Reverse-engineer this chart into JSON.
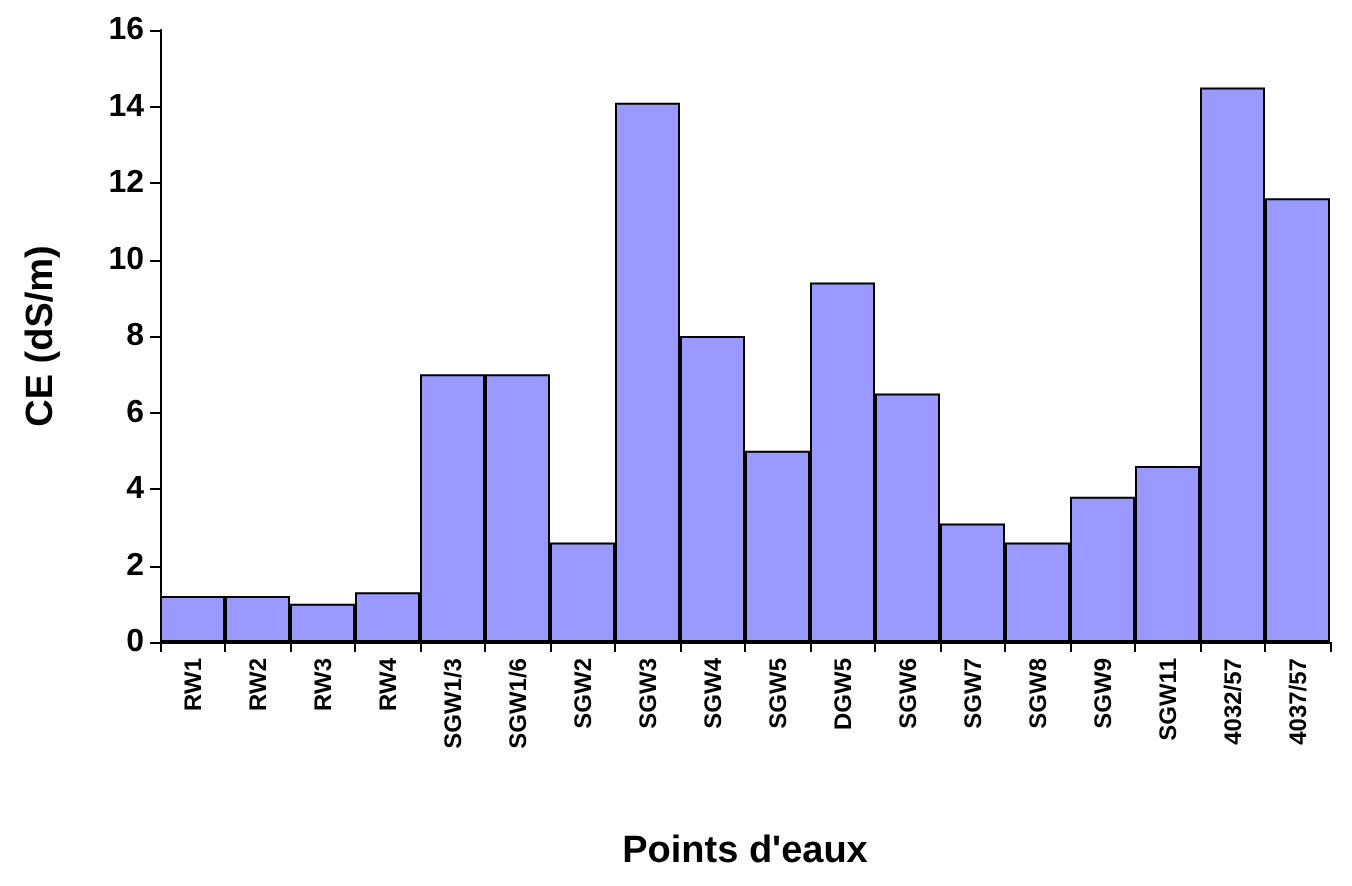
{
  "chart_data": {
    "type": "bar",
    "xlabel": "Points d'eaux",
    "ylabel": "CE (dS/m)",
    "categories": [
      "RW1",
      "RW2",
      "RW3",
      "RW4",
      "SGW1/3",
      "SGW1/6",
      "SGW2",
      "SGW3",
      "SGW4",
      "SGW5",
      "DGW5",
      "SGW6",
      "SGW7",
      "SGW8",
      "SGW9",
      "SGW11",
      "4032/57",
      "4037/57"
    ],
    "values": [
      1.2,
      1.2,
      1.0,
      1.3,
      7.0,
      7.0,
      2.6,
      14.1,
      8.0,
      5.0,
      9.4,
      6.5,
      3.1,
      2.6,
      3.8,
      4.6,
      14.5,
      11.6
    ],
    "color": "#9999ff",
    "ylim": [
      0,
      16
    ],
    "yticks": [
      0,
      2,
      4,
      6,
      8,
      10,
      12,
      14,
      16
    ],
    "grid": false
  }
}
